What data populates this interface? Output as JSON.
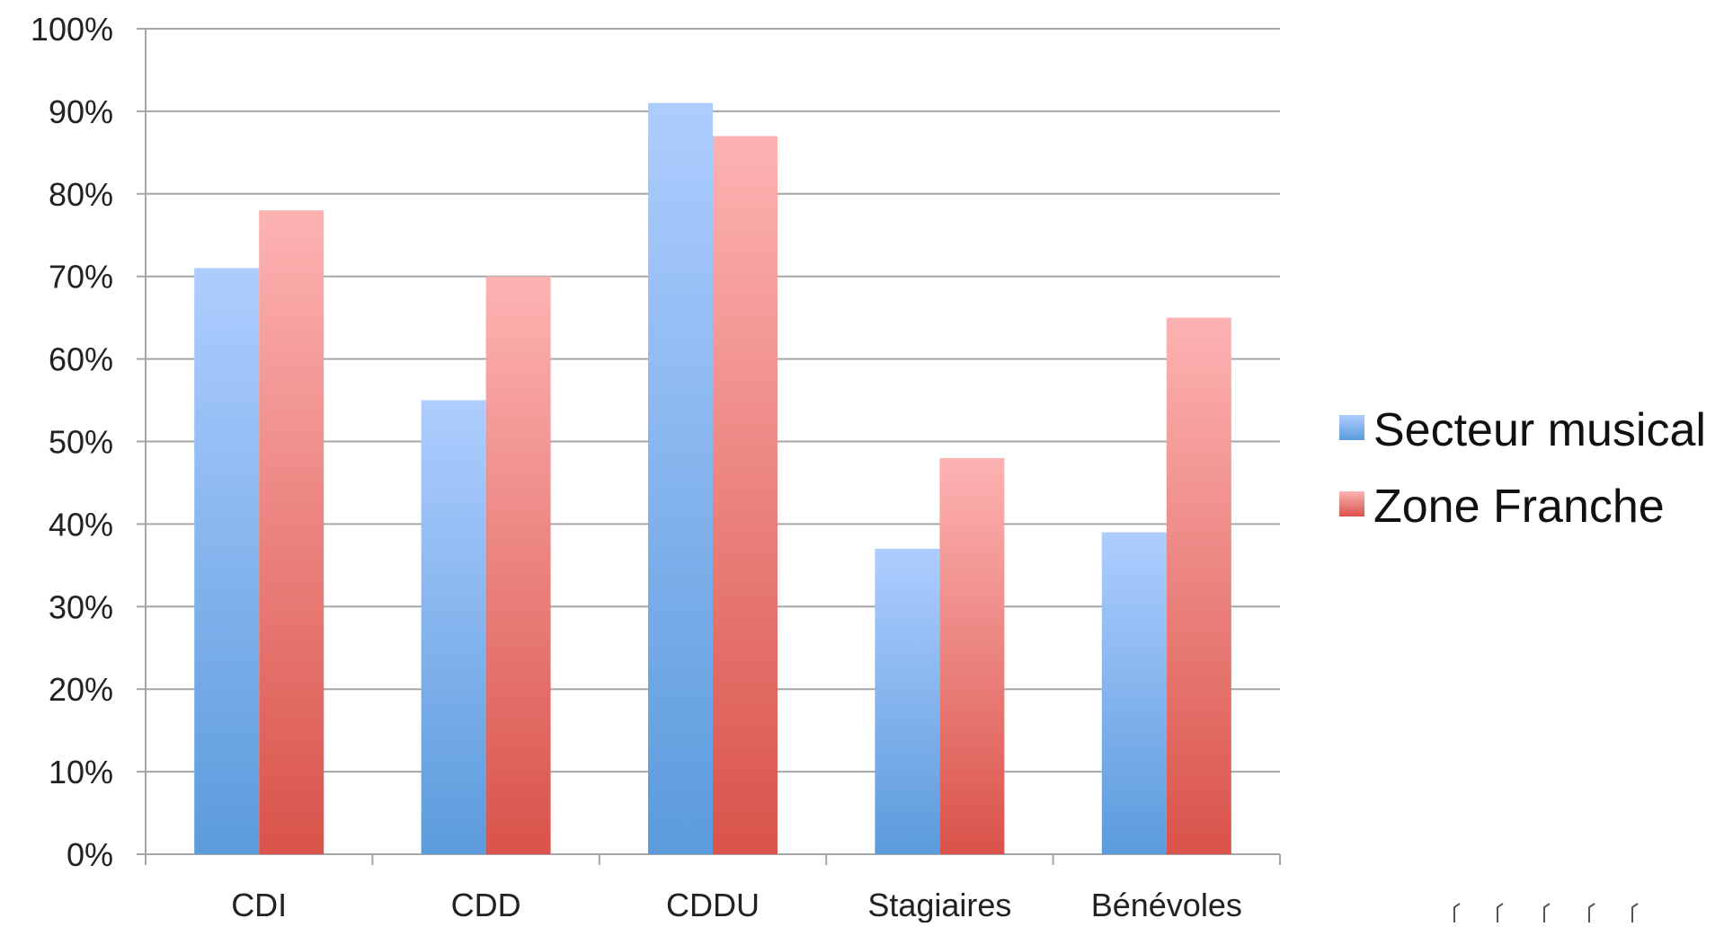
{
  "chart_data": {
    "type": "bar",
    "title": "",
    "xlabel": "",
    "ylabel": "",
    "categories": [
      "CDI",
      "CDD",
      "CDDU",
      "Stagiaires",
      "Bénévoles"
    ],
    "series": [
      {
        "name": "Secteur musical",
        "values": [
          71,
          55,
          91,
          37,
          39
        ],
        "color": "#5b9bdc",
        "color_light": "#aecdff"
      },
      {
        "name": "Zone Franche",
        "values": [
          78,
          70,
          87,
          48,
          65
        ],
        "color": "#d9534a",
        "color_light": "#fdb3b3"
      }
    ],
    "ylim": [
      0,
      100
    ],
    "yticks": [
      "0%",
      "10%",
      "20%",
      "30%",
      "40%",
      "50%",
      "60%",
      "70%",
      "80%",
      "90%",
      "100%"
    ],
    "grid": true,
    "legend_position": "right"
  }
}
